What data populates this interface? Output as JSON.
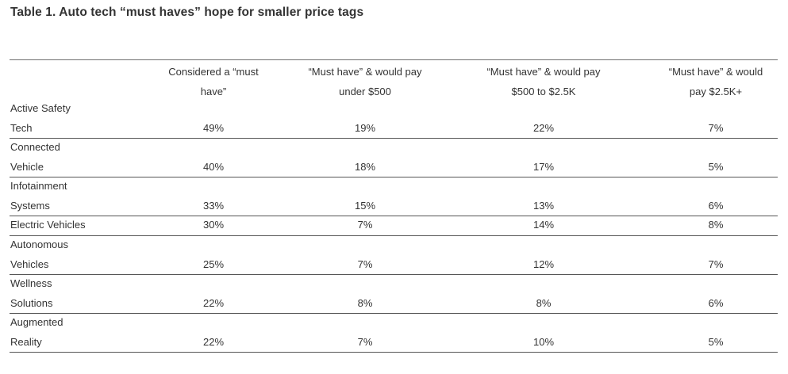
{
  "title": "Table 1. Auto tech “must haves” hope for smaller price tags",
  "columns": [
    {
      "line1": "Considered a “must",
      "line2": "have”"
    },
    {
      "line1": "“Must have” & would pay",
      "line2": "under $500"
    },
    {
      "line1": "“Must have” & would pay",
      "line2": "$500 to $2.5K"
    },
    {
      "line1": "“Must have” & would",
      "line2": "pay $2.5K+"
    }
  ],
  "rows": [
    {
      "label1": "Active Safety",
      "label2": "Tech",
      "values": [
        "49%",
        "19%",
        "22%",
        "7%"
      ]
    },
    {
      "label1": "Connected",
      "label2": "Vehicle",
      "values": [
        "40%",
        "18%",
        "17%",
        "5%"
      ]
    },
    {
      "label1": "Infotainment",
      "label2": "Systems",
      "values": [
        "33%",
        "15%",
        "13%",
        "6%"
      ]
    },
    {
      "label1": "Electric Vehicles",
      "label2": "",
      "values": [
        "30%",
        "7%",
        "14%",
        "8%"
      ]
    },
    {
      "label1": "Autonomous",
      "label2": "Vehicles",
      "values": [
        "25%",
        "7%",
        "12%",
        "7%"
      ]
    },
    {
      "label1": "Wellness",
      "label2": "Solutions",
      "values": [
        "22%",
        "8%",
        "8%",
        "6%"
      ]
    },
    {
      "label1": "Augmented",
      "label2": "Reality",
      "values": [
        "22%",
        "7%",
        "10%",
        "5%"
      ]
    }
  ]
}
